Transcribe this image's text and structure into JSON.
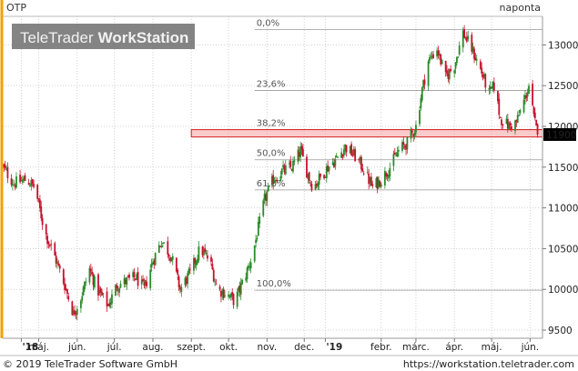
{
  "header": {
    "symbol": "OTP",
    "period": "naponta"
  },
  "watermark": {
    "brand_light": "TeleTrader",
    "brand_bold": "WorkStation"
  },
  "footer": {
    "copyright": "© 2019 TeleTrader Software GmbH",
    "url": "https://workstation.teletrader.com"
  },
  "colors": {
    "up": "#2a8a2a",
    "down": "#c8102e",
    "accent": "#f5a000",
    "zone_fill": "#f7a8a8",
    "zone_stroke": "#d42020",
    "price_tag": "#000000"
  },
  "chart_data": {
    "type": "candlestick",
    "ylim": [
      9400,
      13350
    ],
    "yticks": [
      9500,
      10000,
      10500,
      11000,
      11500,
      12000,
      12500,
      13000
    ],
    "x_ticks": [
      {
        "label": "'18",
        "date": "2018-05-01",
        "major": true
      },
      {
        "label": "máj.",
        "date": "2018-05-15"
      },
      {
        "label": "jún.",
        "date": "2018-06-15"
      },
      {
        "label": "júl.",
        "date": "2018-07-15"
      },
      {
        "label": "aug.",
        "date": "2018-08-15"
      },
      {
        "label": "szept.",
        "date": "2018-09-15"
      },
      {
        "label": "okt.",
        "date": "2018-10-15"
      },
      {
        "label": "nov.",
        "date": "2018-11-15"
      },
      {
        "label": "dec.",
        "date": "2018-12-15"
      },
      {
        "label": "'19",
        "date": "2019-01-01",
        "major": true
      },
      {
        "label": "febr.",
        "date": "2019-02-15"
      },
      {
        "label": "márc.",
        "date": "2019-03-15"
      },
      {
        "label": "ápr.",
        "date": "2019-04-15"
      },
      {
        "label": "máj.",
        "date": "2019-05-15"
      },
      {
        "label": "jún.",
        "date": "2019-06-15"
      }
    ],
    "x_start": "2018-04-16",
    "x_end": "2019-06-25",
    "last_price": "11900",
    "fibonacci": [
      {
        "label": "0,0%",
        "value": 13190
      },
      {
        "label": "23,6%",
        "value": 12440
      },
      {
        "label": "38,2%",
        "value": 11960
      },
      {
        "label": "50,0%",
        "value": 11590
      },
      {
        "label": "61,8%",
        "value": 11220
      },
      {
        "label": "100,0%",
        "value": 9990
      }
    ],
    "fib_start": "2018-11-05",
    "support_zone": {
      "low": 11870,
      "high": 11960,
      "start": "2018-09-15",
      "end": "2019-06-25"
    },
    "anchors": [
      [
        "2018-04-16",
        11500
      ],
      [
        "2018-04-25",
        11300
      ],
      [
        "2018-05-05",
        11350
      ],
      [
        "2018-05-12",
        11250
      ],
      [
        "2018-05-20",
        10700
      ],
      [
        "2018-05-28",
        10400
      ],
      [
        "2018-06-05",
        10050
      ],
      [
        "2018-06-12",
        9700
      ],
      [
        "2018-06-18",
        9900
      ],
      [
        "2018-06-25",
        10250
      ],
      [
        "2018-07-01",
        10000
      ],
      [
        "2018-07-10",
        9800
      ],
      [
        "2018-07-17",
        10050
      ],
      [
        "2018-07-25",
        10100
      ],
      [
        "2018-08-01",
        10150
      ],
      [
        "2018-08-08",
        10000
      ],
      [
        "2018-08-15",
        10350
      ],
      [
        "2018-08-22",
        10600
      ],
      [
        "2018-08-30",
        10400
      ],
      [
        "2018-09-06",
        10000
      ],
      [
        "2018-09-14",
        10200
      ],
      [
        "2018-09-22",
        10500
      ],
      [
        "2018-09-30",
        10350
      ],
      [
        "2018-10-06",
        10000
      ],
      [
        "2018-10-13",
        9950
      ],
      [
        "2018-10-20",
        9850
      ],
      [
        "2018-10-28",
        10150
      ],
      [
        "2018-11-03",
        10400
      ],
      [
        "2018-11-08",
        10750
      ],
      [
        "2018-11-13",
        11100
      ],
      [
        "2018-11-20",
        11350
      ],
      [
        "2018-11-27",
        11450
      ],
      [
        "2018-12-05",
        11500
      ],
      [
        "2018-12-12",
        11700
      ],
      [
        "2018-12-17",
        11450
      ],
      [
        "2018-12-22",
        11250
      ],
      [
        "2019-01-03",
        11500
      ],
      [
        "2019-01-10",
        11600
      ],
      [
        "2019-01-17",
        11750
      ],
      [
        "2019-01-24",
        11650
      ],
      [
        "2019-01-31",
        11500
      ],
      [
        "2019-02-08",
        11250
      ],
      [
        "2019-02-15",
        11350
      ],
      [
        "2019-02-22",
        11500
      ],
      [
        "2019-03-01",
        11700
      ],
      [
        "2019-03-08",
        11800
      ],
      [
        "2019-03-15",
        12000
      ],
      [
        "2019-03-20",
        12450
      ],
      [
        "2019-03-25",
        12800
      ],
      [
        "2019-04-01",
        12950
      ],
      [
        "2019-04-08",
        12600
      ],
      [
        "2019-04-15",
        12750
      ],
      [
        "2019-04-22",
        13150
      ],
      [
        "2019-04-29",
        12950
      ],
      [
        "2019-05-06",
        12700
      ],
      [
        "2019-05-13",
        12400
      ],
      [
        "2019-05-17",
        12500
      ],
      [
        "2019-05-22",
        12100
      ],
      [
        "2019-05-29",
        12000
      ],
      [
        "2019-06-04",
        12050
      ],
      [
        "2019-06-11",
        12350
      ],
      [
        "2019-06-14",
        12500
      ],
      [
        "2019-06-18",
        12100
      ],
      [
        "2019-06-21",
        11900
      ]
    ]
  }
}
